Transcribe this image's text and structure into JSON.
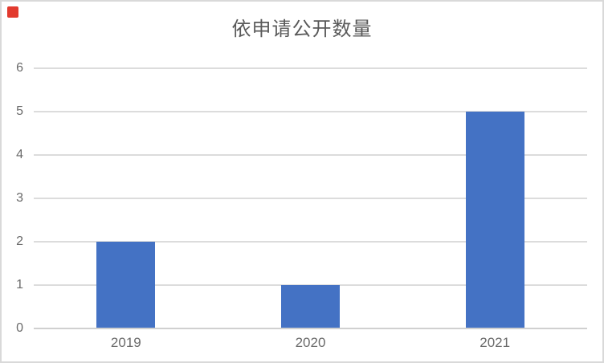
{
  "window": {
    "background": "#ffffff",
    "border_color": "#d9d9d9"
  },
  "marker": {
    "color": "#e23a2e"
  },
  "chart_data": {
    "type": "bar",
    "title": "依申请公开数量",
    "categories": [
      "2019",
      "2020",
      "2021"
    ],
    "values": [
      2,
      1,
      5
    ],
    "xlabel": "",
    "ylabel": "",
    "ylim": [
      0,
      6
    ],
    "yticks": [
      0,
      1,
      2,
      3,
      4,
      5,
      6
    ],
    "grid": true,
    "legend": "none",
    "bar_color": "#4472c4",
    "gridline_color": "#dcdcdc",
    "axis_line_color": "#d0d0d0",
    "tick_label_color": "#6a6a6a",
    "title_color": "#595959"
  }
}
